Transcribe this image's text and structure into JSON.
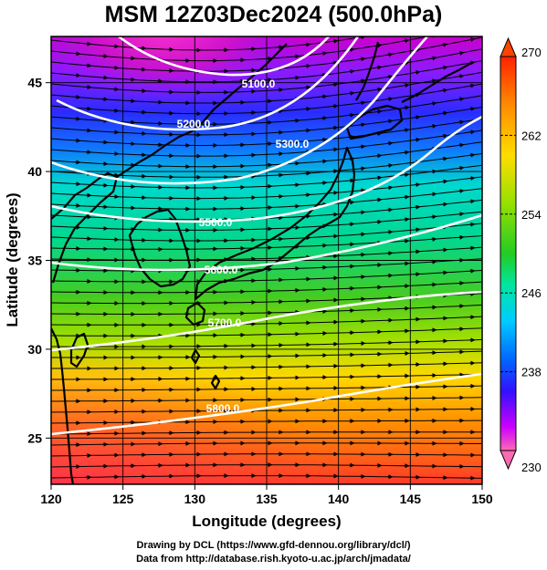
{
  "title": "MSM 12Z03Dec2024 (500.0hPa)",
  "axes": {
    "xlabel": "Longitude (degrees)",
    "ylabel": "Latitude (degrees)",
    "x_ticks": [
      "120",
      "125",
      "130",
      "135",
      "140",
      "145",
      "150"
    ],
    "y_ticks": [
      "25",
      "30",
      "35",
      "40",
      "45"
    ]
  },
  "colorbar": {
    "min_label": "230",
    "max_label": "270",
    "tick_labels": [
      "262",
      "254",
      "246",
      "238"
    ],
    "colors": [
      "#ff69b4",
      "#cc00ff",
      "#3311ff",
      "#0066ff",
      "#00ccff",
      "#00e6a0",
      "#22cc22",
      "#88e000",
      "#ffdd00",
      "#ff8800",
      "#ff2200"
    ]
  },
  "contours": [
    {
      "label": "5100.0"
    },
    {
      "label": "5200.0"
    },
    {
      "label": "5300.0"
    },
    {
      "label": "5500.0"
    },
    {
      "label": "5600.0"
    },
    {
      "label": "5700.0"
    },
    {
      "label": "5800.0"
    }
  ],
  "credits": {
    "line1": "Drawing by DCL (https://www.gfd-dennou.org/library/dcl/)",
    "line2": "Data from http://database.rish.kyoto-u.ac.jp/arch/jmadata/"
  },
  "chart_data": {
    "type": "heatmap",
    "title": "MSM 12Z03Dec2024 (500.0hPa)",
    "xlabel": "Longitude (degrees)",
    "ylabel": "Latitude (degrees)",
    "xlim": [
      120,
      150
    ],
    "ylim": [
      22.4,
      47.6
    ],
    "colorbar_range": [
      230,
      270
    ],
    "contour_levels": [
      5100,
      5200,
      5300,
      5500,
      5600,
      5700,
      5800
    ],
    "overlay": "wind streamlines with arrows"
  }
}
